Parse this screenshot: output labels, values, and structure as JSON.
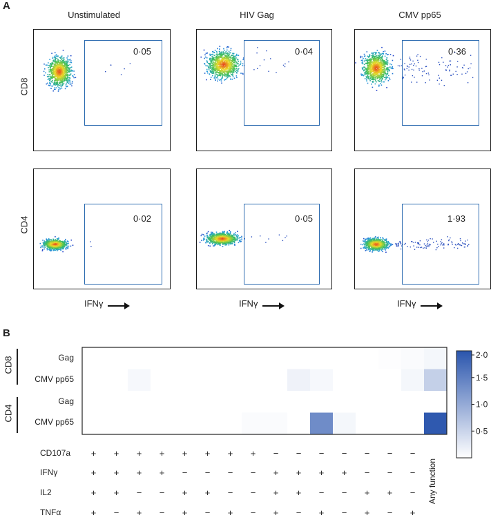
{
  "panel_a": {
    "label": "A",
    "columns": [
      "Unstimulated",
      "HIV Gag",
      "CMV pp65"
    ],
    "rows": [
      "CD8",
      "CD4"
    ],
    "x_axis_label": "IFNγ",
    "gate_values": [
      [
        "0·05",
        "0·04",
        "0·36"
      ],
      [
        "0·02",
        "0·05",
        "1·93"
      ]
    ]
  },
  "panel_b": {
    "label": "B",
    "groups": [
      "CD8",
      "CD4"
    ],
    "row_labels": [
      "Gag",
      "CMV pp65",
      "Gag",
      "CMV pp65"
    ],
    "functions": [
      "CD107a",
      "IFNγ",
      "IL2",
      "TNFα"
    ],
    "any_function_label": "Any function",
    "colorbar_ticks": [
      "2·0",
      "1·5",
      "1·0",
      "0·5"
    ]
  },
  "chart_data": {
    "type": "heatmap",
    "title": "",
    "rows": [
      "CD8 Gag",
      "CD8 CMV pp65",
      "CD4 Gag",
      "CD4 CMV pp65"
    ],
    "columns": [
      "+/+/+/+",
      "+/+/+/−",
      "+/+/−/+",
      "+/+/−/−",
      "+/−/+/+",
      "+/−/+/−",
      "+/−/−/+",
      "+/−/−/−",
      "−/+/+/+",
      "−/+/+/−",
      "−/+/−/+",
      "−/+/−/−",
      "−/−/+/+",
      "−/−/+/−",
      "−/−/−/+",
      "Any function"
    ],
    "signs": {
      "CD107a": [
        "+",
        "+",
        "+",
        "+",
        "+",
        "+",
        "+",
        "+",
        "−",
        "−",
        "−",
        "−",
        "−",
        "−",
        "−"
      ],
      "IFNγ": [
        "+",
        "+",
        "+",
        "+",
        "−",
        "−",
        "−",
        "−",
        "+",
        "+",
        "+",
        "+",
        "−",
        "−",
        "−"
      ],
      "IL2": [
        "+",
        "+",
        "−",
        "−",
        "+",
        "+",
        "−",
        "−",
        "+",
        "+",
        "−",
        "−",
        "+",
        "+",
        "−"
      ],
      "TNFα": [
        "+",
        "−",
        "+",
        "−",
        "+",
        "−",
        "+",
        "−",
        "+",
        "−",
        "+",
        "−",
        "+",
        "−",
        "+"
      ]
    },
    "values": [
      [
        0,
        0,
        0,
        0,
        0,
        0,
        0,
        0,
        0,
        0,
        0,
        0,
        0,
        0.02,
        0.05,
        0.1
      ],
      [
        0,
        0,
        0.08,
        0,
        0,
        0,
        0,
        0,
        0,
        0.15,
        0.08,
        0,
        0,
        0,
        0.1,
        0.55
      ],
      [
        0,
        0,
        0,
        0,
        0,
        0,
        0,
        0,
        0,
        0,
        0,
        0,
        0,
        0,
        0,
        0
      ],
      [
        0,
        0,
        0,
        0,
        0,
        0,
        0,
        0.05,
        0.05,
        0,
        1.35,
        0.1,
        0,
        0,
        0,
        1.95
      ]
    ],
    "vmin": 0,
    "vmax": 2.0,
    "colorbar_ticks": [
      2.0,
      1.5,
      1.0,
      0.5
    ]
  },
  "colors": {
    "gate": "#2c6bb0",
    "heat_low": "#ffffff",
    "heat_high": "#2a55ad"
  }
}
